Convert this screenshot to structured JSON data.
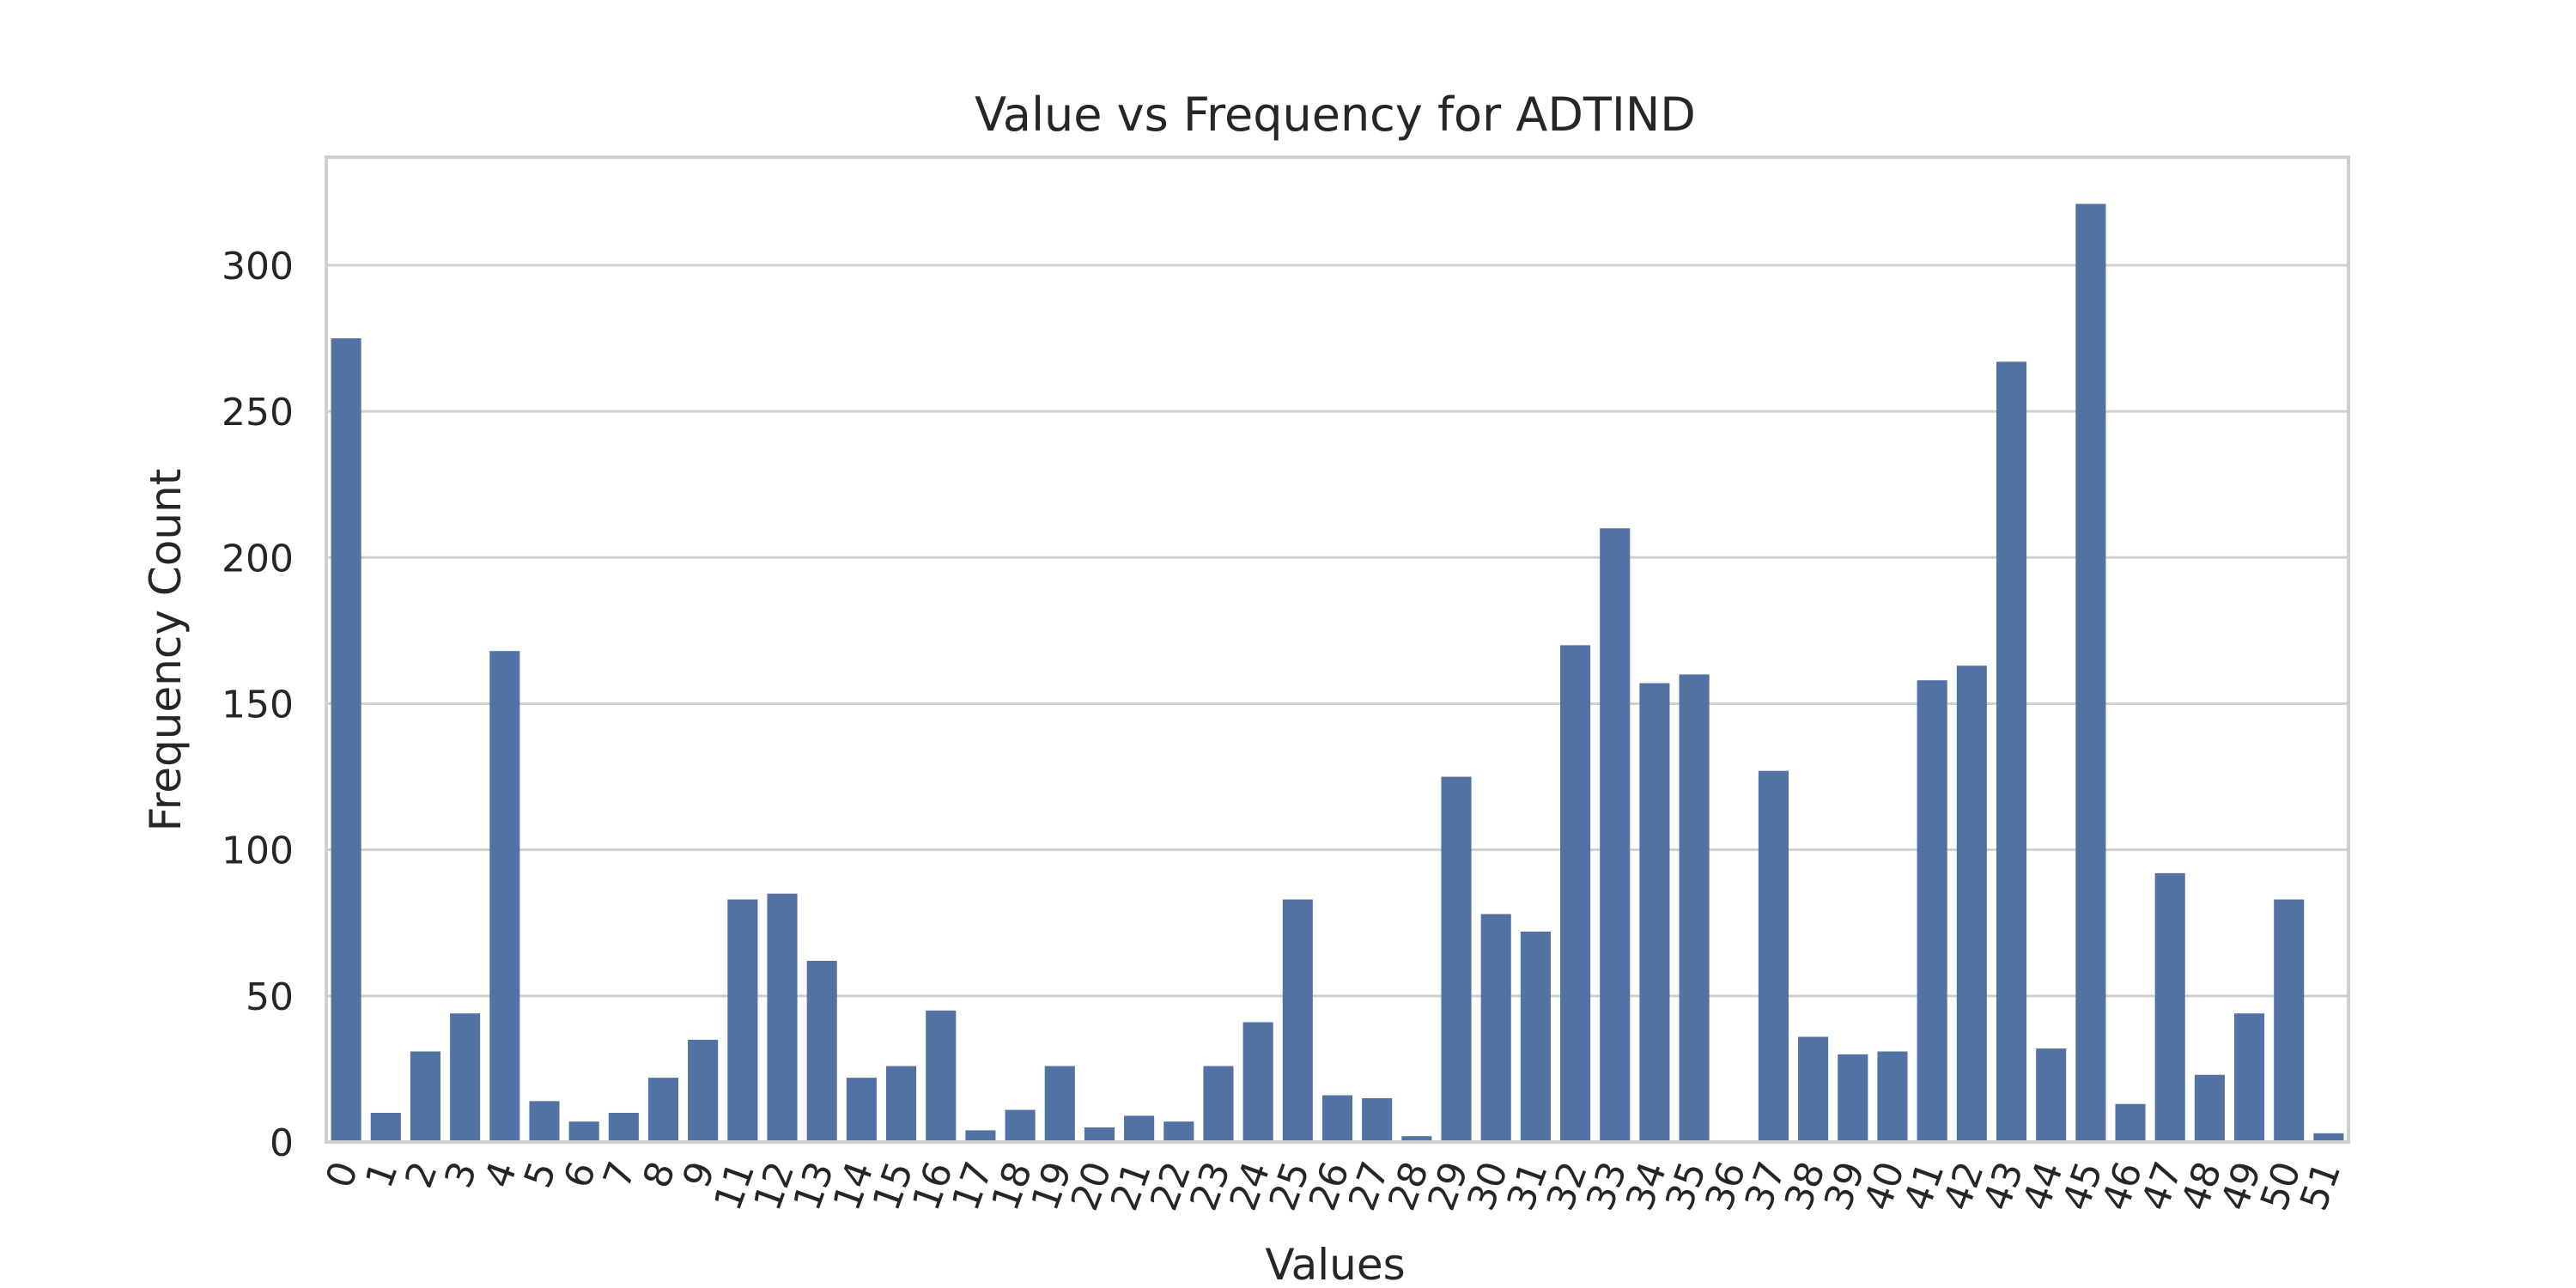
{
  "chart_data": {
    "type": "bar",
    "title": "Value vs Frequency for ADTIND",
    "xlabel": "Values",
    "ylabel": "Frequency Count",
    "categories": [
      "0",
      "1",
      "2",
      "3",
      "4",
      "5",
      "6",
      "7",
      "8",
      "9",
      "11",
      "12",
      "13",
      "14",
      "15",
      "16",
      "17",
      "18",
      "19",
      "20",
      "21",
      "22",
      "23",
      "24",
      "25",
      "26",
      "27",
      "28",
      "29",
      "30",
      "31",
      "32",
      "33",
      "34",
      "35",
      "36",
      "37",
      "38",
      "39",
      "40",
      "41",
      "42",
      "43",
      "44",
      "45",
      "46",
      "47",
      "48",
      "49",
      "50",
      "51"
    ],
    "values": [
      275,
      10,
      31,
      44,
      168,
      14,
      7,
      10,
      22,
      35,
      83,
      85,
      62,
      22,
      26,
      45,
      4,
      11,
      26,
      5,
      9,
      7,
      26,
      41,
      83,
      16,
      15,
      2,
      125,
      78,
      72,
      170,
      210,
      157,
      160,
      0,
      127,
      36,
      30,
      31,
      158,
      163,
      267,
      32,
      321,
      13,
      92,
      23,
      44,
      83,
      3
    ],
    "ylim": [
      0,
      337
    ],
    "yticks": [
      0,
      50,
      100,
      150,
      200,
      250,
      300
    ],
    "grid": "horizontal",
    "colors": {
      "bar": "#5272a3",
      "grid": "#cfcfcf",
      "text": "#262626"
    }
  }
}
